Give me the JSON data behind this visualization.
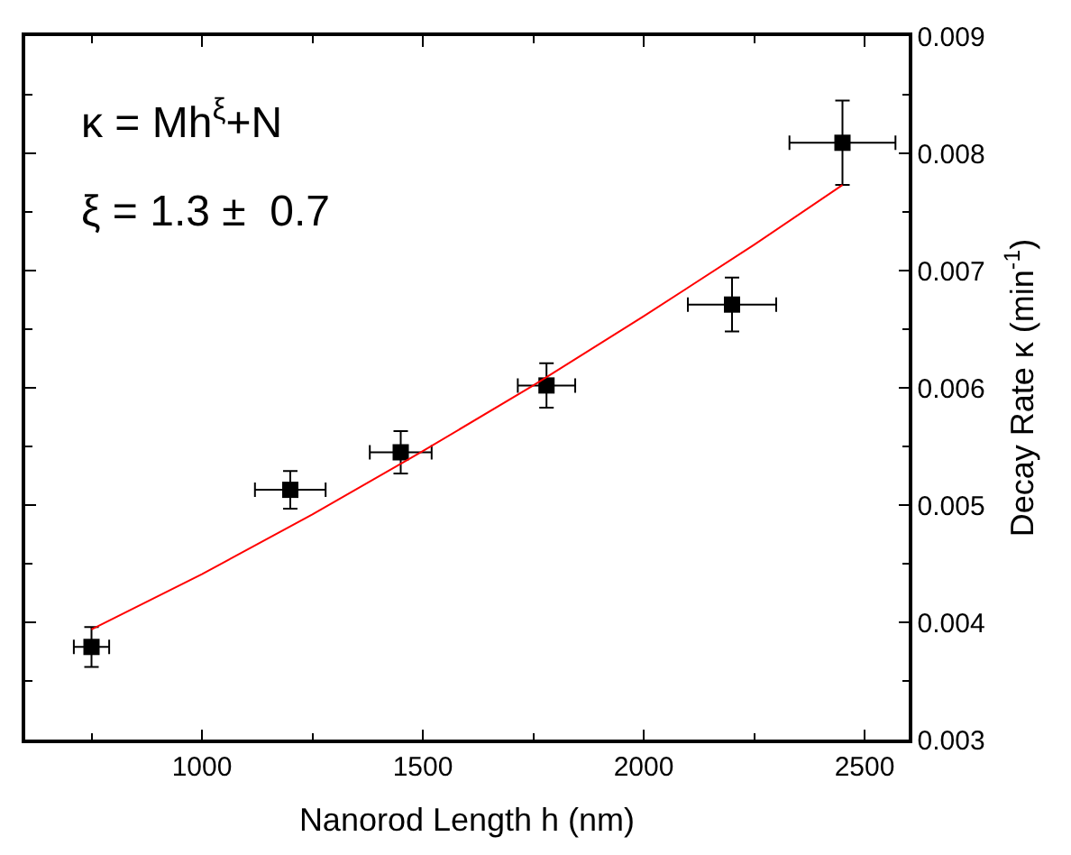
{
  "chart_data": {
    "type": "scatter",
    "xlabel": "Nanorod Length h (nm)",
    "ylabel": "Decay Rate κ (min$^{-1}$)",
    "annotations": [
      "κ = Mh$^{ξ}$+N",
      "ξ = 1.3 ±  0.7"
    ],
    "xlim": [
      600,
      2600
    ],
    "xticks": [
      1000,
      1500,
      2000,
      2500
    ],
    "ylim": [
      0.003,
      0.009
    ],
    "yticks": [
      0.003,
      0.004,
      0.005,
      0.006,
      0.007,
      0.008,
      0.009
    ],
    "series": [
      {
        "color": "#000000",
        "marker": "square",
        "x": [
          750,
          1200,
          1450,
          1780,
          2200,
          2450
        ],
        "values": [
          0.00379,
          0.00513,
          0.00545,
          0.00602,
          0.00671,
          0.00809
        ],
        "errors": [
          0.00017,
          0.00016,
          0.00018,
          0.00019,
          0.00023,
          0.00036
        ],
        "xerrors": [
          40,
          80,
          70,
          65,
          100,
          120
        ]
      },
      {
        "type": "line",
        "color": "#ff0000",
        "line_style": "solid",
        "x": [
          750,
          1000,
          1250,
          1500,
          1750,
          2000,
          2250,
          2450
        ],
        "values": [
          0.00394,
          0.00441,
          0.00492,
          0.00546,
          0.00602,
          0.00661,
          0.00722,
          0.00773
        ]
      }
    ]
  }
}
